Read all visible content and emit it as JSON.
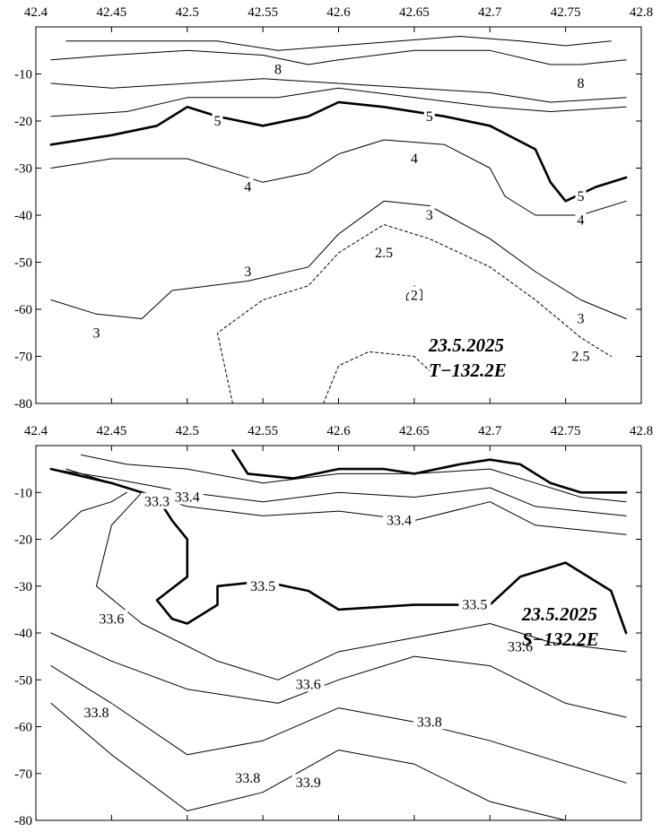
{
  "chart_data": [
    {
      "type": "contour",
      "variable": "T",
      "x_ticks": [
        "42.4",
        "42.45",
        "42.5",
        "42.55",
        "42.6",
        "42.65",
        "42.7",
        "42.75",
        "42.8"
      ],
      "y_ticks": [
        "-10",
        "-20",
        "-30",
        "-40",
        "-50",
        "-60",
        "-70",
        "-80"
      ],
      "xlim": [
        42.4,
        42.8
      ],
      "ylim": [
        -80,
        0
      ],
      "annotation": [
        "23.5.2025",
        "T−132.2E"
      ],
      "contours": [
        {
          "level": "8",
          "style": "thin",
          "points": [
            [
              42.41,
              -7
            ],
            [
              42.45,
              -6
            ],
            [
              42.5,
              -5
            ],
            [
              42.55,
              -6
            ],
            [
              42.58,
              -8
            ],
            [
              42.6,
              -7
            ],
            [
              42.65,
              -5
            ],
            [
              42.7,
              -5
            ],
            [
              42.74,
              -8
            ],
            [
              42.76,
              -8
            ],
            [
              42.79,
              -7
            ]
          ]
        },
        {
          "level": "8",
          "style": "thin",
          "points": [
            [
              42.42,
              -3
            ],
            [
              42.46,
              -3
            ],
            [
              42.52,
              -3
            ],
            [
              42.56,
              -5
            ],
            [
              42.6,
              -4
            ],
            [
              42.64,
              -3
            ],
            [
              42.68,
              -2
            ],
            [
              42.72,
              -3
            ],
            [
              42.75,
              -4
            ],
            [
              42.78,
              -3
            ]
          ]
        },
        {
          "level": "8",
          "style": "thin",
          "points": [
            [
              42.41,
              -12
            ],
            [
              42.45,
              -13
            ],
            [
              42.5,
              -12
            ],
            [
              42.55,
              -11
            ],
            [
              42.6,
              -12
            ],
            [
              42.65,
              -13
            ],
            [
              42.7,
              -14
            ],
            [
              42.74,
              -16
            ],
            [
              42.79,
              -15
            ]
          ]
        },
        {
          "level": "",
          "style": "thin",
          "points": [
            [
              42.41,
              -19
            ],
            [
              42.46,
              -18
            ],
            [
              42.5,
              -15
            ],
            [
              42.56,
              -15
            ],
            [
              42.6,
              -13
            ],
            [
              42.65,
              -15
            ],
            [
              42.7,
              -17
            ],
            [
              42.74,
              -18
            ],
            [
              42.79,
              -17
            ]
          ]
        },
        {
          "level": "5",
          "style": "bold",
          "points": [
            [
              42.41,
              -25
            ],
            [
              42.45,
              -23
            ],
            [
              42.48,
              -21
            ],
            [
              42.5,
              -17
            ],
            [
              42.52,
              -19
            ],
            [
              42.55,
              -21
            ],
            [
              42.58,
              -19
            ],
            [
              42.6,
              -16
            ],
            [
              42.63,
              -17
            ],
            [
              42.67,
              -19
            ],
            [
              42.7,
              -21
            ],
            [
              42.73,
              -26
            ],
            [
              42.74,
              -33
            ],
            [
              42.75,
              -37
            ],
            [
              42.77,
              -34
            ],
            [
              42.79,
              -32
            ]
          ]
        },
        {
          "level": "4",
          "style": "thin",
          "points": [
            [
              42.41,
              -30
            ],
            [
              42.45,
              -28
            ],
            [
              42.5,
              -28
            ],
            [
              42.55,
              -33
            ],
            [
              42.58,
              -31
            ],
            [
              42.6,
              -27
            ],
            [
              42.63,
              -24
            ],
            [
              42.67,
              -25
            ],
            [
              42.7,
              -30
            ],
            [
              42.71,
              -36
            ],
            [
              42.73,
              -40
            ],
            [
              42.76,
              -40
            ],
            [
              42.79,
              -37
            ]
          ]
        },
        {
          "level": "3",
          "style": "thin",
          "points": [
            [
              42.41,
              -58
            ],
            [
              42.44,
              -61
            ],
            [
              42.47,
              -62
            ],
            [
              42.49,
              -56
            ],
            [
              42.54,
              -54
            ],
            [
              42.58,
              -51
            ],
            [
              42.6,
              -44
            ],
            [
              42.63,
              -37
            ],
            [
              42.66,
              -38
            ],
            [
              42.7,
              -45
            ],
            [
              42.73,
              -52
            ],
            [
              42.76,
              -58
            ],
            [
              42.79,
              -62
            ]
          ]
        },
        {
          "level": "2.5",
          "style": "dashed",
          "points": [
            [
              42.53,
              -80
            ],
            [
              42.52,
              -65
            ],
            [
              42.55,
              -58
            ],
            [
              42.58,
              -55
            ],
            [
              42.6,
              -48
            ],
            [
              42.63,
              -42
            ],
            [
              42.66,
              -45
            ],
            [
              42.7,
              -51
            ],
            [
              42.73,
              -58
            ],
            [
              42.76,
              -66
            ],
            [
              42.78,
              -70
            ]
          ]
        },
        {
          "level": "2.5",
          "style": "dashed",
          "points": [
            [
              42.59,
              -80
            ],
            [
              42.6,
              -72
            ],
            [
              42.62,
              -69
            ],
            [
              42.65,
              -70
            ],
            [
              42.66,
              -73
            ]
          ]
        },
        {
          "level": "2",
          "style": "thin",
          "points": [
            [
              42.645,
              -57
            ],
            [
              42.65,
              -55
            ],
            [
              42.655,
              -56
            ],
            [
              42.655,
              -58
            ],
            [
              42.645,
              -58
            ],
            [
              42.645,
              -57
            ]
          ]
        }
      ],
      "contour_labels": [
        {
          "text": "8",
          "x": 42.56,
          "y": -9
        },
        {
          "text": "8",
          "x": 42.76,
          "y": -12
        },
        {
          "text": "5",
          "x": 42.52,
          "y": -20
        },
        {
          "text": "5",
          "x": 42.66,
          "y": -19
        },
        {
          "text": "5",
          "x": 42.76,
          "y": -36
        },
        {
          "text": "4",
          "x": 42.65,
          "y": -28
        },
        {
          "text": "4",
          "x": 42.54,
          "y": -34
        },
        {
          "text": "4",
          "x": 42.76,
          "y": -41
        },
        {
          "text": "3",
          "x": 42.66,
          "y": -40
        },
        {
          "text": "3",
          "x": 42.54,
          "y": -52
        },
        {
          "text": "3",
          "x": 42.76,
          "y": -62
        },
        {
          "text": "3",
          "x": 42.44,
          "y": -65
        },
        {
          "text": "2.5",
          "x": 42.63,
          "y": -48
        },
        {
          "text": "2.5",
          "x": 42.76,
          "y": -70
        },
        {
          "text": "2",
          "x": 42.65,
          "y": -57
        }
      ]
    },
    {
      "type": "contour",
      "variable": "S",
      "x_ticks": [
        "42.4",
        "42.45",
        "42.5",
        "42.55",
        "42.6",
        "42.65",
        "42.7",
        "42.75",
        "42.8"
      ],
      "y_ticks": [
        "-10",
        "-20",
        "-30",
        "-40",
        "-50",
        "-60",
        "-70",
        "-80"
      ],
      "xlim": [
        42.4,
        42.8
      ],
      "ylim": [
        -80,
        0
      ],
      "annotation": [
        "23.5.2025",
        "S−132.2E"
      ],
      "contours": [
        {
          "level": "",
          "style": "bold",
          "points": [
            [
              42.53,
              -1
            ],
            [
              42.54,
              -6
            ],
            [
              42.57,
              -7
            ],
            [
              42.6,
              -5
            ],
            [
              42.63,
              -5
            ],
            [
              42.65,
              -6
            ],
            [
              42.68,
              -4
            ],
            [
              42.7,
              -3
            ],
            [
              42.72,
              -4
            ],
            [
              42.74,
              -8
            ],
            [
              42.76,
              -10
            ],
            [
              42.79,
              -10
            ]
          ]
        },
        {
          "level": "",
          "style": "thin",
          "points": [
            [
              42.43,
              -2
            ],
            [
              42.46,
              -4
            ],
            [
              42.5,
              -5
            ],
            [
              42.55,
              -8
            ],
            [
              42.6,
              -6
            ],
            [
              42.65,
              -6
            ],
            [
              42.7,
              -5
            ],
            [
              42.73,
              -8
            ],
            [
              42.76,
              -11
            ],
            [
              42.79,
              -12
            ]
          ]
        },
        {
          "level": "",
          "style": "thin",
          "points": [
            [
              42.41,
              -5
            ],
            [
              42.45,
              -7
            ],
            [
              42.5,
              -10
            ],
            [
              42.55,
              -12
            ],
            [
              42.6,
              -10
            ],
            [
              42.65,
              -11
            ],
            [
              42.7,
              -9
            ],
            [
              42.73,
              -13
            ],
            [
              42.76,
              -14
            ],
            [
              42.79,
              -15
            ]
          ]
        },
        {
          "level": "33.4",
          "style": "thin",
          "points": [
            [
              42.42,
              -5
            ],
            [
              42.47,
              -10
            ],
            [
              42.5,
              -13
            ],
            [
              42.55,
              -15
            ],
            [
              42.6,
              -14
            ],
            [
              42.65,
              -16
            ],
            [
              42.7,
              -12
            ],
            [
              42.73,
              -17
            ],
            [
              42.76,
              -18
            ],
            [
              42.79,
              -19
            ]
          ]
        },
        {
          "level": "33.5",
          "style": "bold",
          "points": [
            [
              42.41,
              -5
            ],
            [
              42.45,
              -8
            ],
            [
              42.48,
              -11
            ],
            [
              42.49,
              -16
            ],
            [
              42.5,
              -20
            ],
            [
              42.5,
              -28
            ],
            [
              42.48,
              -33
            ],
            [
              42.49,
              -37
            ],
            [
              42.5,
              -38
            ],
            [
              42.52,
              -34
            ],
            [
              42.52,
              -30
            ],
            [
              42.55,
              -29
            ],
            [
              42.58,
              -31
            ],
            [
              42.6,
              -35
            ],
            [
              42.65,
              -34
            ],
            [
              42.7,
              -34
            ],
            [
              42.72,
              -28
            ],
            [
              42.75,
              -25
            ],
            [
              42.78,
              -31
            ],
            [
              42.79,
              -40
            ]
          ]
        },
        {
          "level": "",
          "style": "thin",
          "points": [
            [
              42.41,
              -20
            ],
            [
              42.43,
              -14
            ],
            [
              42.45,
              -12
            ],
            [
              42.46,
              -10
            ]
          ]
        },
        {
          "level": "33.6",
          "style": "thin",
          "points": [
            [
              42.47,
              -10
            ],
            [
              42.45,
              -17
            ],
            [
              42.44,
              -30
            ],
            [
              42.47,
              -38
            ],
            [
              42.52,
              -46
            ],
            [
              42.56,
              -50
            ],
            [
              42.6,
              -44
            ],
            [
              42.65,
              -41
            ],
            [
              42.7,
              -38
            ],
            [
              42.74,
              -42
            ],
            [
              42.79,
              -44
            ]
          ]
        },
        {
          "level": "33.6",
          "style": "thin",
          "points": [
            [
              42.41,
              -40
            ],
            [
              42.45,
              -46
            ],
            [
              42.5,
              -52
            ],
            [
              42.56,
              -55
            ],
            [
              42.6,
              -50
            ],
            [
              42.65,
              -45
            ],
            [
              42.7,
              -47
            ],
            [
              42.75,
              -55
            ],
            [
              42.79,
              -58
            ]
          ]
        },
        {
          "level": "33.8",
          "style": "thin",
          "points": [
            [
              42.41,
              -47
            ],
            [
              42.45,
              -55
            ],
            [
              42.5,
              -66
            ],
            [
              42.55,
              -63
            ],
            [
              42.6,
              -56
            ],
            [
              42.65,
              -59
            ],
            [
              42.7,
              -63
            ],
            [
              42.75,
              -68
            ],
            [
              42.79,
              -72
            ]
          ]
        },
        {
          "level": "33.9",
          "style": "thin",
          "points": [
            [
              42.41,
              -55
            ],
            [
              42.45,
              -66
            ],
            [
              42.5,
              -78
            ],
            [
              42.55,
              -74
            ],
            [
              42.6,
              -65
            ],
            [
              42.65,
              -68
            ],
            [
              42.7,
              -76
            ],
            [
              42.75,
              -80
            ]
          ]
        }
      ],
      "contour_labels": [
        {
          "text": "33.4",
          "x": 42.5,
          "y": -11
        },
        {
          "text": "33.3",
          "x": 42.48,
          "y": -12
        },
        {
          "text": "33.4",
          "x": 42.64,
          "y": -16
        },
        {
          "text": "33.5",
          "x": 42.55,
          "y": -30
        },
        {
          "text": "33.5",
          "x": 42.69,
          "y": -34
        },
        {
          "text": "33.6",
          "x": 42.45,
          "y": -37
        },
        {
          "text": "33.6",
          "x": 42.58,
          "y": -51
        },
        {
          "text": "33.6",
          "x": 42.72,
          "y": -43
        },
        {
          "text": "33.8",
          "x": 42.44,
          "y": -57
        },
        {
          "text": "33.8",
          "x": 42.66,
          "y": -59
        },
        {
          "text": "33.8",
          "x": 42.54,
          "y": -71
        },
        {
          "text": "33.9",
          "x": 42.58,
          "y": -72
        }
      ]
    }
  ]
}
